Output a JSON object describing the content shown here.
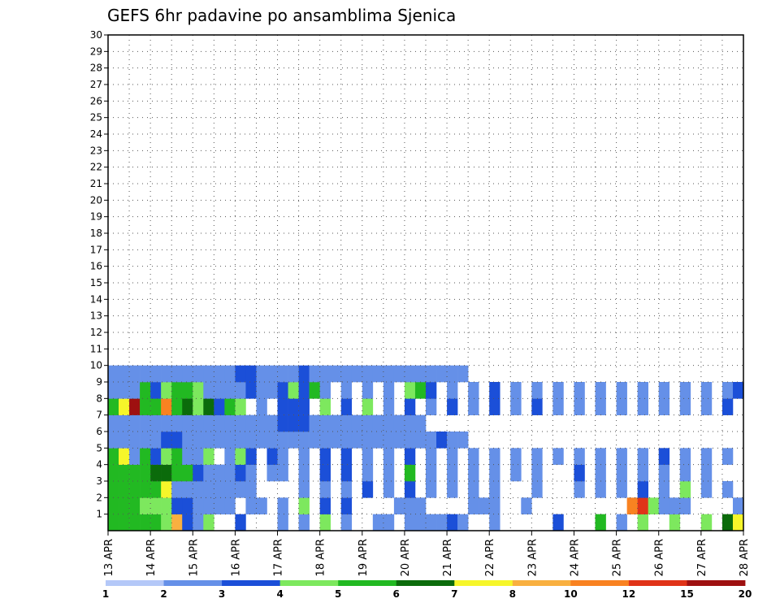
{
  "chart_data": {
    "type": "heatmap",
    "title": "GEFS 6hr padavine po ansamblima Sjenica",
    "x_tick_labels": [
      "13 APR",
      "14 APR",
      "15 APR",
      "16 APR",
      "17 APR",
      "18 APR",
      "19 APR",
      "20 APR",
      "21 APR",
      "22 APR",
      "23 APR",
      "24 APR",
      "25 APR",
      "26 APR",
      "27 APR",
      "28 APR"
    ],
    "y_tick_labels": [
      "1",
      "2",
      "3",
      "4",
      "5",
      "6",
      "7",
      "8",
      "9",
      "10",
      "11",
      "12",
      "13",
      "14",
      "15",
      "16",
      "17",
      "18",
      "19",
      "20",
      "21",
      "22",
      "23",
      "24",
      "25",
      "26",
      "27",
      "28",
      "29",
      "30"
    ],
    "legend": {
      "labels": [
        "1",
        "2",
        "3",
        "4",
        "5",
        "6",
        "7",
        "8",
        "10",
        "12",
        "15",
        "20"
      ],
      "colors": [
        "#b4c8f8",
        "#6590e8",
        "#1b4fd8",
        "#7de85e",
        "#22b922",
        "#0b6b0b",
        "#f6f62a",
        "#f9b040",
        "#f98221",
        "#e03318",
        "#9e1010"
      ]
    },
    "x_range": [
      0,
      60
    ],
    "y_range": [
      0,
      30
    ],
    "grid": true,
    "cells": [
      [
        0,
        0,
        4
      ],
      [
        0,
        1,
        4
      ],
      [
        0,
        2,
        4
      ],
      [
        0,
        3,
        4
      ],
      [
        0,
        4,
        4
      ],
      [
        0,
        5,
        3
      ],
      [
        0,
        6,
        7
      ],
      [
        0,
        7,
        2
      ],
      [
        0,
        8,
        1
      ],
      [
        0,
        9,
        3
      ],
      [
        0,
        12,
        2
      ],
      [
        0,
        16,
        1
      ],
      [
        0,
        18,
        1
      ],
      [
        0,
        20,
        3
      ],
      [
        0,
        22,
        1
      ],
      [
        0,
        25,
        1
      ],
      [
        0,
        26,
        1
      ],
      [
        0,
        28,
        1
      ],
      [
        0,
        29,
        1
      ],
      [
        0,
        30,
        1
      ],
      [
        0,
        31,
        1
      ],
      [
        0,
        32,
        2
      ],
      [
        0,
        33,
        1
      ],
      [
        0,
        36,
        1
      ],
      [
        0,
        42,
        2
      ],
      [
        0,
        46,
        4
      ],
      [
        0,
        48,
        1
      ],
      [
        0,
        50,
        3
      ],
      [
        0,
        53,
        3
      ],
      [
        0,
        56,
        3
      ],
      [
        0,
        58,
        5
      ],
      [
        0,
        59,
        6
      ],
      [
        1,
        0,
        4
      ],
      [
        1,
        1,
        4
      ],
      [
        1,
        2,
        4
      ],
      [
        1,
        3,
        3
      ],
      [
        1,
        4,
        3
      ],
      [
        1,
        5,
        3
      ],
      [
        1,
        6,
        2
      ],
      [
        1,
        7,
        2
      ],
      [
        1,
        8,
        1
      ],
      [
        1,
        9,
        1
      ],
      [
        1,
        10,
        1
      ],
      [
        1,
        11,
        1
      ],
      [
        1,
        13,
        1
      ],
      [
        1,
        14,
        1
      ],
      [
        1,
        16,
        1
      ],
      [
        1,
        18,
        3
      ],
      [
        1,
        20,
        2
      ],
      [
        1,
        22,
        2
      ],
      [
        1,
        27,
        1
      ],
      [
        1,
        28,
        1
      ],
      [
        1,
        29,
        1
      ],
      [
        1,
        34,
        1
      ],
      [
        1,
        35,
        1
      ],
      [
        1,
        36,
        1
      ],
      [
        1,
        39,
        1
      ],
      [
        1,
        49,
        8
      ],
      [
        1,
        50,
        9
      ],
      [
        1,
        51,
        3
      ],
      [
        1,
        52,
        1
      ],
      [
        1,
        53,
        1
      ],
      [
        1,
        54,
        1
      ],
      [
        1,
        59,
        1
      ],
      [
        2,
        0,
        4
      ],
      [
        2,
        1,
        4
      ],
      [
        2,
        2,
        4
      ],
      [
        2,
        3,
        4
      ],
      [
        2,
        4,
        4
      ],
      [
        2,
        5,
        6
      ],
      [
        2,
        6,
        1
      ],
      [
        2,
        7,
        1
      ],
      [
        2,
        8,
        1
      ],
      [
        2,
        9,
        1
      ],
      [
        2,
        10,
        1
      ],
      [
        2,
        11,
        1
      ],
      [
        2,
        12,
        1
      ],
      [
        2,
        13,
        1
      ],
      [
        2,
        18,
        1
      ],
      [
        2,
        20,
        1
      ],
      [
        2,
        22,
        1
      ],
      [
        2,
        24,
        2
      ],
      [
        2,
        26,
        1
      ],
      [
        2,
        28,
        2
      ],
      [
        2,
        30,
        1
      ],
      [
        2,
        32,
        1
      ],
      [
        2,
        34,
        1
      ],
      [
        2,
        36,
        1
      ],
      [
        2,
        40,
        1
      ],
      [
        2,
        44,
        1
      ],
      [
        2,
        46,
        1
      ],
      [
        2,
        48,
        1
      ],
      [
        2,
        50,
        2
      ],
      [
        2,
        52,
        1
      ],
      [
        2,
        54,
        3
      ],
      [
        2,
        56,
        1
      ],
      [
        2,
        58,
        1
      ],
      [
        3,
        0,
        4
      ],
      [
        3,
        1,
        4
      ],
      [
        3,
        2,
        4
      ],
      [
        3,
        3,
        4
      ],
      [
        3,
        4,
        5
      ],
      [
        3,
        5,
        5
      ],
      [
        3,
        6,
        4
      ],
      [
        3,
        7,
        4
      ],
      [
        3,
        8,
        2
      ],
      [
        3,
        9,
        1
      ],
      [
        3,
        10,
        1
      ],
      [
        3,
        11,
        1
      ],
      [
        3,
        12,
        2
      ],
      [
        3,
        13,
        1
      ],
      [
        3,
        15,
        1
      ],
      [
        3,
        16,
        1
      ],
      [
        3,
        18,
        1
      ],
      [
        3,
        20,
        2
      ],
      [
        3,
        22,
        2
      ],
      [
        3,
        24,
        1
      ],
      [
        3,
        26,
        1
      ],
      [
        3,
        28,
        4
      ],
      [
        3,
        30,
        1
      ],
      [
        3,
        32,
        1
      ],
      [
        3,
        34,
        1
      ],
      [
        3,
        36,
        1
      ],
      [
        3,
        38,
        1
      ],
      [
        3,
        40,
        1
      ],
      [
        3,
        44,
        2
      ],
      [
        3,
        46,
        1
      ],
      [
        3,
        48,
        1
      ],
      [
        3,
        50,
        1
      ],
      [
        3,
        52,
        1
      ],
      [
        3,
        54,
        1
      ],
      [
        3,
        56,
        1
      ],
      [
        4,
        0,
        4
      ],
      [
        4,
        1,
        6
      ],
      [
        4,
        2,
        1
      ],
      [
        4,
        3,
        4
      ],
      [
        4,
        4,
        2
      ],
      [
        4,
        5,
        3
      ],
      [
        4,
        6,
        4
      ],
      [
        4,
        7,
        1
      ],
      [
        4,
        8,
        1
      ],
      [
        4,
        9,
        3
      ],
      [
        4,
        11,
        1
      ],
      [
        4,
        12,
        3
      ],
      [
        4,
        13,
        2
      ],
      [
        4,
        15,
        2
      ],
      [
        4,
        16,
        1
      ],
      [
        4,
        18,
        1
      ],
      [
        4,
        20,
        2
      ],
      [
        4,
        22,
        2
      ],
      [
        4,
        24,
        1
      ],
      [
        4,
        26,
        1
      ],
      [
        4,
        28,
        2
      ],
      [
        4,
        30,
        1
      ],
      [
        4,
        32,
        1
      ],
      [
        4,
        34,
        1
      ],
      [
        4,
        36,
        1
      ],
      [
        4,
        38,
        1
      ],
      [
        4,
        40,
        1
      ],
      [
        4,
        42,
        1
      ],
      [
        4,
        44,
        1
      ],
      [
        4,
        46,
        1
      ],
      [
        4,
        48,
        1
      ],
      [
        4,
        50,
        1
      ],
      [
        4,
        52,
        2
      ],
      [
        4,
        54,
        1
      ],
      [
        4,
        56,
        1
      ],
      [
        4,
        58,
        1
      ],
      [
        5,
        0,
        1
      ],
      [
        5,
        1,
        1
      ],
      [
        5,
        2,
        1
      ],
      [
        5,
        3,
        1
      ],
      [
        5,
        4,
        1
      ],
      [
        5,
        5,
        2
      ],
      [
        5,
        6,
        2
      ],
      [
        5,
        7,
        1
      ],
      [
        5,
        8,
        1
      ],
      [
        5,
        9,
        1
      ],
      [
        5,
        10,
        1
      ],
      [
        5,
        11,
        1
      ],
      [
        5,
        12,
        1
      ],
      [
        5,
        13,
        1
      ],
      [
        5,
        14,
        1
      ],
      [
        5,
        15,
        1
      ],
      [
        5,
        16,
        1
      ],
      [
        5,
        17,
        1
      ],
      [
        5,
        18,
        1
      ],
      [
        5,
        19,
        1
      ],
      [
        5,
        20,
        1
      ],
      [
        5,
        21,
        1
      ],
      [
        5,
        22,
        1
      ],
      [
        5,
        23,
        1
      ],
      [
        5,
        24,
        1
      ],
      [
        5,
        25,
        1
      ],
      [
        5,
        26,
        1
      ],
      [
        5,
        27,
        1
      ],
      [
        5,
        28,
        1
      ],
      [
        5,
        29,
        1
      ],
      [
        5,
        30,
        1
      ],
      [
        5,
        31,
        2
      ],
      [
        5,
        32,
        1
      ],
      [
        5,
        33,
        1
      ],
      [
        6,
        0,
        1
      ],
      [
        6,
        1,
        1
      ],
      [
        6,
        2,
        1
      ],
      [
        6,
        3,
        1
      ],
      [
        6,
        4,
        1
      ],
      [
        6,
        5,
        1
      ],
      [
        6,
        6,
        1
      ],
      [
        6,
        7,
        1
      ],
      [
        6,
        8,
        1
      ],
      [
        6,
        9,
        1
      ],
      [
        6,
        10,
        1
      ],
      [
        6,
        11,
        1
      ],
      [
        6,
        12,
        1
      ],
      [
        6,
        13,
        1
      ],
      [
        6,
        14,
        1
      ],
      [
        6,
        15,
        1
      ],
      [
        6,
        16,
        2
      ],
      [
        6,
        17,
        2
      ],
      [
        6,
        18,
        2
      ],
      [
        6,
        19,
        1
      ],
      [
        6,
        20,
        1
      ],
      [
        6,
        21,
        1
      ],
      [
        6,
        22,
        1
      ],
      [
        6,
        23,
        1
      ],
      [
        6,
        24,
        1
      ],
      [
        6,
        25,
        1
      ],
      [
        6,
        26,
        1
      ],
      [
        6,
        27,
        1
      ],
      [
        6,
        28,
        1
      ],
      [
        6,
        29,
        1
      ],
      [
        7,
        0,
        4
      ],
      [
        7,
        1,
        6
      ],
      [
        7,
        2,
        10
      ],
      [
        7,
        3,
        4
      ],
      [
        7,
        4,
        4
      ],
      [
        7,
        5,
        8
      ],
      [
        7,
        6,
        4
      ],
      [
        7,
        7,
        5
      ],
      [
        7,
        8,
        3
      ],
      [
        7,
        9,
        5
      ],
      [
        7,
        10,
        2
      ],
      [
        7,
        11,
        4
      ],
      [
        7,
        12,
        3
      ],
      [
        7,
        14,
        1
      ],
      [
        7,
        16,
        2
      ],
      [
        7,
        17,
        2
      ],
      [
        7,
        18,
        2
      ],
      [
        7,
        20,
        3
      ],
      [
        7,
        22,
        2
      ],
      [
        7,
        24,
        3
      ],
      [
        7,
        26,
        1
      ],
      [
        7,
        28,
        2
      ],
      [
        7,
        30,
        1
      ],
      [
        7,
        32,
        2
      ],
      [
        7,
        34,
        1
      ],
      [
        7,
        36,
        2
      ],
      [
        7,
        38,
        1
      ],
      [
        7,
        40,
        2
      ],
      [
        7,
        42,
        1
      ],
      [
        7,
        44,
        1
      ],
      [
        7,
        46,
        1
      ],
      [
        7,
        48,
        1
      ],
      [
        7,
        50,
        1
      ],
      [
        7,
        52,
        1
      ],
      [
        7,
        54,
        1
      ],
      [
        7,
        56,
        1
      ],
      [
        7,
        58,
        2
      ],
      [
        8,
        0,
        1
      ],
      [
        8,
        1,
        1
      ],
      [
        8,
        2,
        1
      ],
      [
        8,
        3,
        4
      ],
      [
        8,
        4,
        2
      ],
      [
        8,
        5,
        3
      ],
      [
        8,
        6,
        4
      ],
      [
        8,
        7,
        4
      ],
      [
        8,
        8,
        3
      ],
      [
        8,
        9,
        1
      ],
      [
        8,
        10,
        1
      ],
      [
        8,
        11,
        1
      ],
      [
        8,
        12,
        1
      ],
      [
        8,
        13,
        2
      ],
      [
        8,
        14,
        1
      ],
      [
        8,
        15,
        1
      ],
      [
        8,
        16,
        2
      ],
      [
        8,
        17,
        3
      ],
      [
        8,
        18,
        2
      ],
      [
        8,
        19,
        4
      ],
      [
        8,
        20,
        1
      ],
      [
        8,
        22,
        1
      ],
      [
        8,
        24,
        1
      ],
      [
        8,
        26,
        1
      ],
      [
        8,
        28,
        3
      ],
      [
        8,
        29,
        4
      ],
      [
        8,
        30,
        2
      ],
      [
        8,
        32,
        1
      ],
      [
        8,
        34,
        1
      ],
      [
        8,
        36,
        2
      ],
      [
        8,
        38,
        1
      ],
      [
        8,
        40,
        1
      ],
      [
        8,
        42,
        1
      ],
      [
        8,
        44,
        1
      ],
      [
        8,
        46,
        1
      ],
      [
        8,
        48,
        1
      ],
      [
        8,
        50,
        1
      ],
      [
        8,
        52,
        1
      ],
      [
        8,
        54,
        1
      ],
      [
        8,
        56,
        1
      ],
      [
        8,
        58,
        1
      ],
      [
        8,
        59,
        2
      ],
      [
        9,
        0,
        1
      ],
      [
        9,
        1,
        1
      ],
      [
        9,
        2,
        1
      ],
      [
        9,
        3,
        1
      ],
      [
        9,
        4,
        1
      ],
      [
        9,
        5,
        1
      ],
      [
        9,
        6,
        1
      ],
      [
        9,
        7,
        1
      ],
      [
        9,
        8,
        1
      ],
      [
        9,
        9,
        1
      ],
      [
        9,
        10,
        1
      ],
      [
        9,
        11,
        1
      ],
      [
        9,
        12,
        2
      ],
      [
        9,
        13,
        2
      ],
      [
        9,
        14,
        1
      ],
      [
        9,
        15,
        1
      ],
      [
        9,
        16,
        1
      ],
      [
        9,
        17,
        1
      ],
      [
        9,
        18,
        2
      ],
      [
        9,
        19,
        1
      ],
      [
        9,
        20,
        1
      ],
      [
        9,
        21,
        1
      ],
      [
        9,
        22,
        1
      ],
      [
        9,
        23,
        1
      ],
      [
        9,
        24,
        1
      ],
      [
        9,
        25,
        1
      ],
      [
        9,
        26,
        1
      ],
      [
        9,
        27,
        1
      ],
      [
        9,
        28,
        1
      ],
      [
        9,
        29,
        1
      ],
      [
        9,
        30,
        1
      ],
      [
        9,
        31,
        1
      ],
      [
        9,
        32,
        1
      ],
      [
        9,
        33,
        1
      ]
    ]
  }
}
